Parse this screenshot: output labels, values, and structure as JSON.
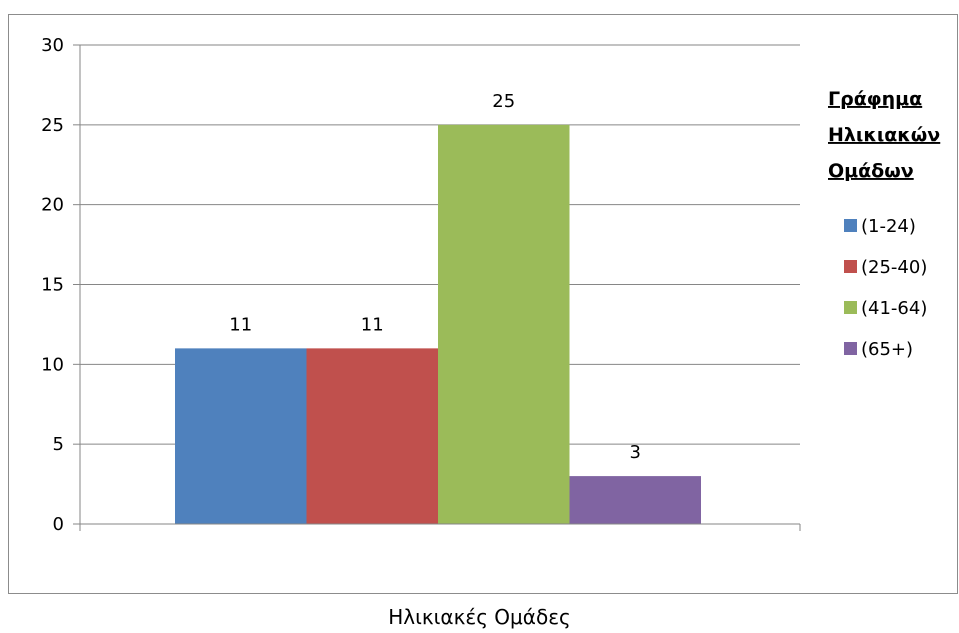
{
  "chart_data": {
    "type": "bar",
    "categories": [
      "(1-24)",
      "(25-40)",
      "(41-64)",
      "(65+)"
    ],
    "series": [
      {
        "name": "(1-24)",
        "value": 11,
        "color": "#4f81bd"
      },
      {
        "name": "(25-40)",
        "value": 11,
        "color": "#c0504d"
      },
      {
        "name": "(41-64)",
        "value": 25,
        "color": "#9bbb59"
      },
      {
        "name": "(65+)",
        "value": 3,
        "color": "#8064a2"
      }
    ],
    "data_labels": [
      "11",
      "11",
      "25",
      "3"
    ],
    "ylim": [
      0,
      30
    ],
    "yticks": [
      "0",
      "5",
      "10",
      "15",
      "20",
      "25",
      "30"
    ],
    "xlabel": "Ηλικιακές Ομάδες",
    "legend": {
      "title_lines": [
        "Γράφημα",
        "Ηλικιακών",
        "Ομάδων"
      ],
      "placement": "right"
    },
    "grid": true,
    "grid_color": "#868686"
  }
}
